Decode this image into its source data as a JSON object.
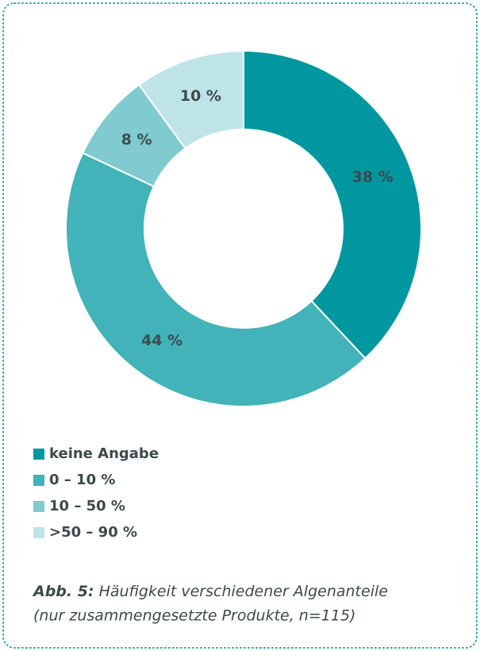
{
  "chart_data": {
    "type": "donut",
    "categories": [
      "keine Angabe",
      "0 – 10 %",
      "10 – 50 %",
      ">50 – 90 %"
    ],
    "values": [
      38,
      44,
      8,
      10
    ],
    "value_labels": [
      "38 %",
      "44 %",
      "8 %",
      "10 %"
    ],
    "colors": [
      "#0097a0",
      "#41b3b9",
      "#7fcbcf",
      "#bfe4e7"
    ],
    "caption_label": "Abb. 5:",
    "caption": "Häufigkeit verschiedener Algenanteile (nur zusammengesetzte Produkte, n=115)"
  }
}
